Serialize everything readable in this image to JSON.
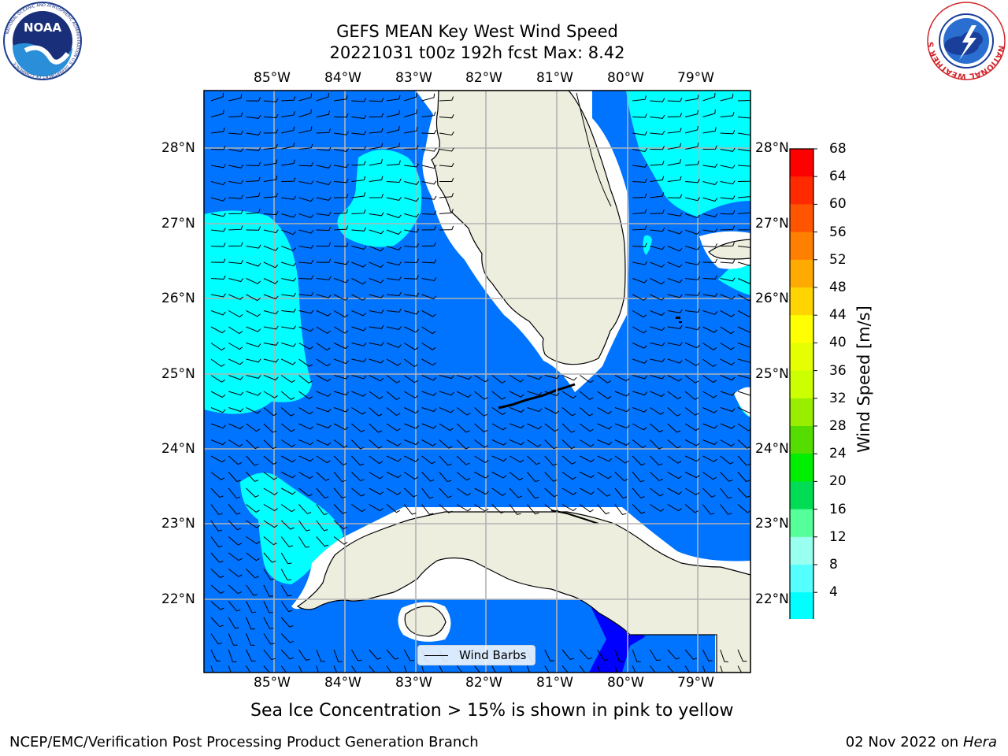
{
  "header": {
    "title_line1": "GEFS MEAN Key West Wind Speed",
    "title_line2": "20221031 t00z 192h fcst   Max: 8.42"
  },
  "logos": {
    "left": "noaa-logo",
    "left_text": "NOAA",
    "left_ring_text": "NATIONAL OCEANIC AND ATMOSPHERIC ADMINISTRATION U.S. DEPARTMENT OF COMMERCE",
    "right": "nws-logo",
    "right_ring_text": "NATIONAL WEATHER SERVICE"
  },
  "map": {
    "lon_labels": [
      "85°W",
      "84°W",
      "83°W",
      "82°W",
      "81°W",
      "80°W",
      "79°W"
    ],
    "lat_labels": [
      "28°N",
      "27°N",
      "26°N",
      "25°N",
      "24°N",
      "23°N",
      "22°N"
    ],
    "colors": {
      "ocean_4_8": "#0073ff",
      "ocean_8_12": "#00ffff",
      "ocean_below_4": "#0000ff",
      "land": "#eeeedf",
      "grid": "#b3b3b3"
    },
    "legend": {
      "label": "Wind Barbs"
    }
  },
  "colorbar": {
    "title": "Wind Speed [m/s]",
    "ticks": [
      "68",
      "64",
      "60",
      "56",
      "52",
      "48",
      "44",
      "40",
      "36",
      "32",
      "28",
      "24",
      "20",
      "16",
      "12",
      "8",
      "4"
    ],
    "colors": [
      "#ff0000",
      "#ff2a00",
      "#ff5500",
      "#ff7f00",
      "#ffaa00",
      "#ffd400",
      "#ffff00",
      "#e5ff00",
      "#ccff00",
      "#99ee00",
      "#55dd00",
      "#00ee00",
      "#00dd55",
      "#55ff99",
      "#99ffee",
      "#55ffff",
      "#00ffff",
      "#0073ff"
    ],
    "extend_color": "#0000ff"
  },
  "caption": "Sea Ice Concentration > 15% is shown in pink to yellow",
  "footer": {
    "left": "NCEP/EMC/Verification Post Processing Product Generation Branch",
    "right_date": "02 Nov 2022 on",
    "right_machine": "Hera"
  }
}
